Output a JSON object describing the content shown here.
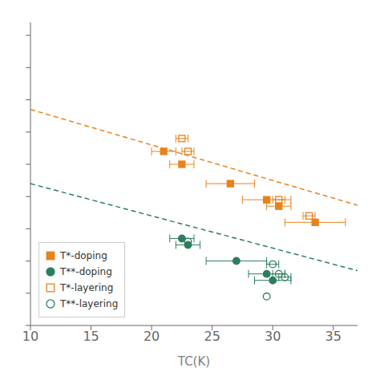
{
  "chart_data": {
    "type": "scatter",
    "xlabel": "TC(K)",
    "xlim": [
      10,
      37
    ],
    "xticks": [
      10,
      15,
      20,
      25,
      30,
      35
    ],
    "ylim": [
      100,
      570
    ],
    "yticks": [
      100,
      150,
      200,
      250,
      300,
      350,
      400,
      450,
      500,
      550
    ],
    "tick_labels": "x",
    "grid": false,
    "legend": "lower left",
    "series": [
      {
        "type": "line",
        "line_style": "dashed",
        "color": "#e8821a",
        "x": [
          10,
          37
        ],
        "values": [
          435,
          286.5
        ]
      },
      {
        "type": "line",
        "line_style": "dashed",
        "color": "#2e7d5e",
        "x": [
          10,
          37
        ],
        "values": [
          320,
          185
        ]
      },
      {
        "type": "scatter",
        "name": "T*-doping",
        "color": "#e8821a",
        "marker": "square",
        "x": [
          21.0,
          22.5,
          26.5,
          29.5,
          30.5,
          33.5
        ],
        "values": [
          370,
          350,
          320,
          295,
          285,
          260
        ],
        "xerr": [
          1.0,
          1.0,
          2.0,
          2.0,
          1.0,
          2.5
        ]
      },
      {
        "type": "scatter",
        "name": "T**-doping",
        "color": "#2e7d5e",
        "marker": "circle",
        "x": [
          22.5,
          23.0,
          27.0,
          29.5,
          30.0
        ],
        "values": [
          235,
          225,
          200,
          180,
          170
        ],
        "xerr": [
          1.0,
          1.0,
          2.5,
          1.5,
          1.5
        ]
      },
      {
        "type": "scatter",
        "name": "T*-layering",
        "color": "#e8821a",
        "marker": "square-open",
        "x": [
          22.5,
          23.0,
          30.5,
          33.0
        ],
        "values": [
          390,
          370,
          295,
          270
        ],
        "xerr": [
          0.5,
          0.5,
          0.5,
          0.5
        ]
      },
      {
        "type": "scatter",
        "name": "T**-layering",
        "color": "#2e7d5e",
        "marker": "circle-open",
        "x": [
          23.0,
          30.0,
          30.5,
          31.0,
          29.5
        ],
        "values": [
          230,
          195,
          180,
          175,
          145
        ],
        "xerr": [
          0.0,
          0.5,
          0.5,
          0.5,
          0.0
        ]
      }
    ]
  }
}
